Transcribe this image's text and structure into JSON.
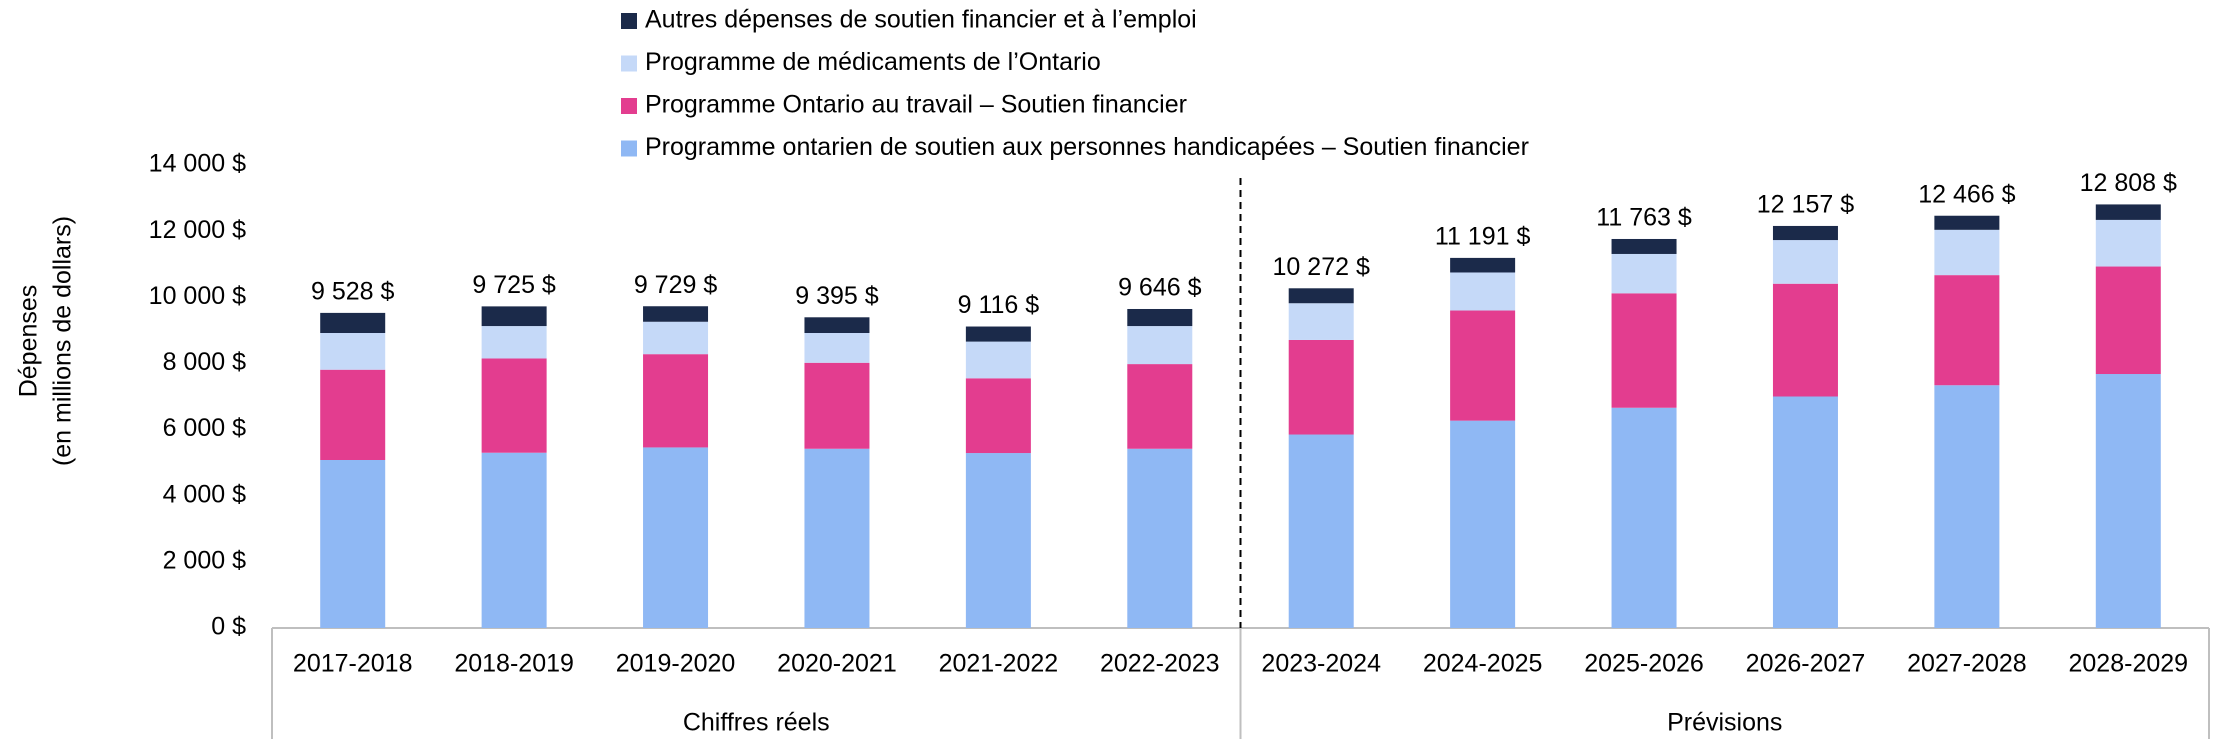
{
  "chart_data": {
    "type": "stacked_bar",
    "ylabel": [
      "Dépenses",
      "(en millions de dollars)"
    ],
    "categories": [
      "2017-2018",
      "2018-2019",
      "2019-2020",
      "2020-2021",
      "2021-2022",
      "2022-2023",
      "2023-2024",
      "2024-2025",
      "2025-2026",
      "2026-2027",
      "2027-2028",
      "2028-2029"
    ],
    "group_labels": [
      "Chiffres réels",
      "Prévisions"
    ],
    "series": [
      {
        "name": "Programme ontarien de soutien aux personnes handicapées – Soutien financier",
        "color": "#8fb8f4",
        "values": [
          5080,
          5300,
          5460,
          5420,
          5290,
          5420,
          5850,
          6270,
          6660,
          7000,
          7340,
          7680
        ]
      },
      {
        "name": "Programme Ontario au travail – Soutien financier",
        "color": "#e33d8f",
        "values": [
          2730,
          2850,
          2820,
          2600,
          2260,
          2560,
          2860,
          3330,
          3460,
          3410,
          3330,
          3250
        ]
      },
      {
        "name": "Programme de médicaments de l’Ontario",
        "color": "#c5d9f8",
        "values": [
          1110,
          980,
          980,
          900,
          1110,
          1150,
          1110,
          1150,
          1190,
          1320,
          1370,
          1410
        ]
      },
      {
        "name": "Autres dépenses de soutien financier et à l’emploi",
        "color": "#1b2a4a",
        "values": [
          608,
          595,
          469,
          475,
          456,
          516,
          452,
          441,
          453,
          427,
          426,
          468
        ]
      }
    ],
    "totals": [
      9528,
      9725,
      9729,
      9395,
      9116,
      9646,
      10272,
      11191,
      11763,
      12157,
      12466,
      12808
    ],
    "total_labels": [
      "9 528 $",
      "9 725 $",
      "9 729 $",
      "9 395 $",
      "9 116 $",
      "9 646 $",
      "10 272 $",
      "11 191 $",
      "11 763 $",
      "12 157 $",
      "12 466 $",
      "12 808 $"
    ],
    "ylim": [
      0,
      14000
    ],
    "yticks": [
      {
        "value": 0,
        "label": "0 $"
      },
      {
        "value": 2000,
        "label": "2 000 $"
      },
      {
        "value": 4000,
        "label": "4 000 $"
      },
      {
        "value": 6000,
        "label": "6 000 $"
      },
      {
        "value": 8000,
        "label": "8 000 $"
      },
      {
        "value": 10000,
        "label": "10 000 $"
      },
      {
        "value": 12000,
        "label": "12 000 $"
      },
      {
        "value": 14000,
        "label": "14 000 $"
      }
    ],
    "grid": false
  }
}
